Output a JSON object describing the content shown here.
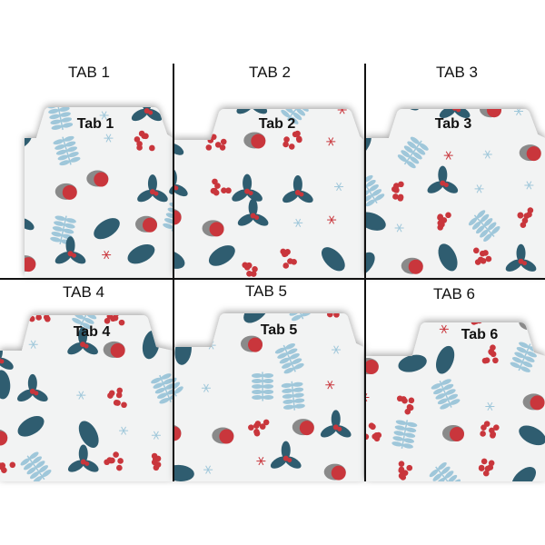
{
  "tabs": [
    {
      "title": "TAB 1",
      "tab_label": "Tab 1"
    },
    {
      "title": "TAB 2",
      "tab_label": "Tab 2"
    },
    {
      "title": "TAB 3",
      "tab_label": "Tab 3"
    },
    {
      "title": "TAB 4",
      "tab_label": "Tab 4"
    },
    {
      "title": "TAB 5",
      "tab_label": "Tab 5"
    },
    {
      "title": "TAB 6",
      "tab_label": "Tab 6"
    }
  ],
  "colors": {
    "paper": "#f2f3f3",
    "teal": "#2f5d70",
    "light_blue": "#9fc7da",
    "red": "#c9363c",
    "grey": "#8a8a8a"
  },
  "pattern": "winter-holly-robin-snowman"
}
